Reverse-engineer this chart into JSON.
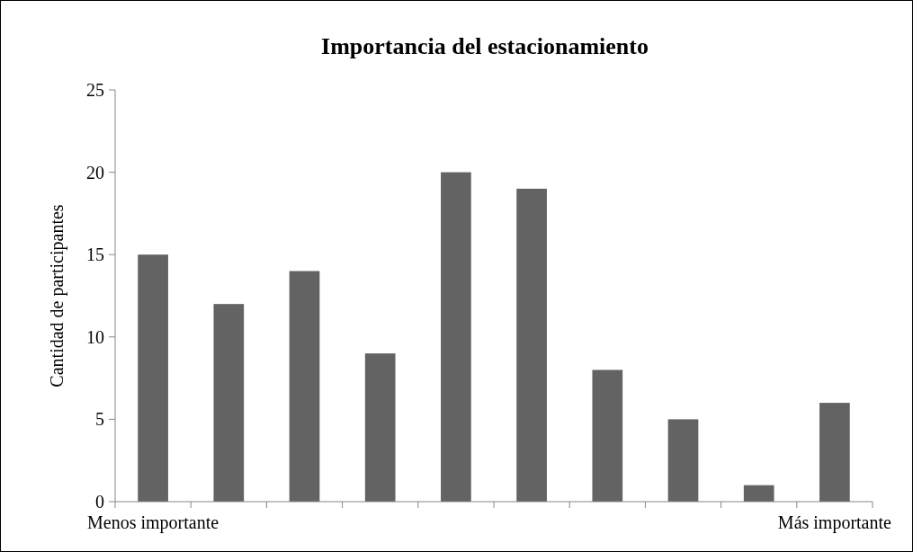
{
  "chart_data": {
    "type": "bar",
    "title": "Importancia del estacionamiento",
    "ylabel": "Cantidad de participantes",
    "categories": [
      "Menos importante",
      null,
      null,
      null,
      null,
      null,
      null,
      null,
      null,
      "Más importante"
    ],
    "values": [
      15,
      12,
      14,
      9,
      20,
      19,
      8,
      5,
      1,
      6
    ],
    "color": "#636363",
    "ylim": [
      0,
      25
    ],
    "yticks": [
      0,
      5,
      10,
      15,
      20,
      25
    ],
    "grid": false
  }
}
